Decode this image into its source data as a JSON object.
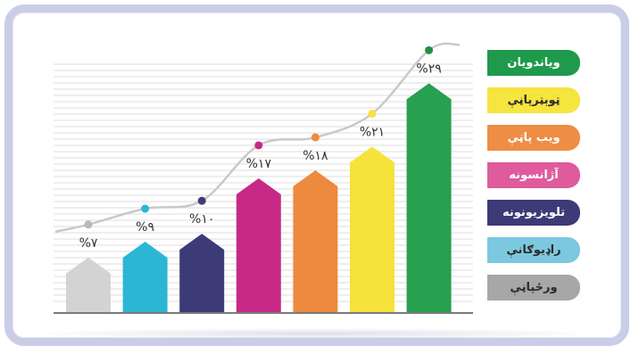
{
  "chart_data": {
    "type": "bar",
    "categories": [
      "ورځپاڼې",
      "راډیوګانې",
      "تلویزیونونه",
      "آژانسونه",
      "ویب پاڼې",
      "ټوېټرپاڼې",
      "ویاندویان"
    ],
    "values": [
      7,
      9,
      10,
      17,
      18,
      21,
      29
    ],
    "value_labels": [
      "%۷",
      "%۹",
      "%۱۰",
      "%۱۷",
      "%۱۸",
      "%۲۱",
      "%۲۹"
    ],
    "colors": [
      "#d3d3d3",
      "#2bb6d6",
      "#3d3a78",
      "#c72a86",
      "#ee8a3e",
      "#f5e23b",
      "#27a04f"
    ],
    "ylim": [
      0,
      35
    ],
    "grid": true,
    "legend_placement": "right",
    "title": "",
    "xlabel": "",
    "ylabel": ""
  },
  "legend": {
    "items": [
      {
        "label": "ویاندویان",
        "color": "#1f9a4c",
        "dark_text": false
      },
      {
        "label": "ټوېټرپاڼې",
        "color": "#f6e43f",
        "dark_text": true
      },
      {
        "label": "ویب پاڼې",
        "color": "#ef8d44",
        "dark_text": false
      },
      {
        "label": "آژانسونه",
        "color": "#df5b9c",
        "dark_text": false
      },
      {
        "label": "تلویزیونونه",
        "color": "#3c3a77",
        "dark_text": false
      },
      {
        "label": "راډیوګانې",
        "color": "#7cc8df",
        "dark_text": true
      },
      {
        "label": "ورځپاڼې",
        "color": "#a7a7a7",
        "dark_text": true
      }
    ]
  }
}
